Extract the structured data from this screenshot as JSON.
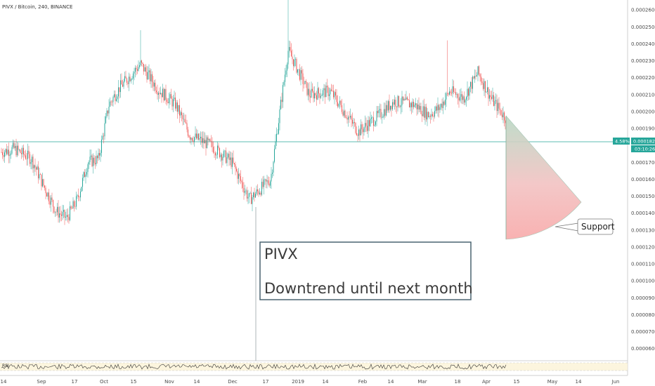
{
  "header": {
    "symbol": "PIVX / Bitcoin, 240, BINANCE"
  },
  "price_axis": {
    "ticks": [
      "0.0002600",
      "0.0002500",
      "0.0002400",
      "0.0002300",
      "0.0002200",
      "0.0002100",
      "0.0002000",
      "0.0001900",
      "0.0001700",
      "0.0001600",
      "0.0001500",
      "0.0001400",
      "0.0001300",
      "0.0001200",
      "0.0001100",
      "0.0001000",
      "0.0000900",
      "0.0000800",
      "0.0000700",
      "0.0000600"
    ],
    "current_price": "0.0001826",
    "change_pct": "4.58%",
    "countdown": "03:10:26"
  },
  "time_axis": {
    "ticks": [
      "14",
      "Sep",
      "17",
      "Oct",
      "15",
      "Nov",
      "14",
      "Dec",
      "17",
      "2019",
      "14",
      "Feb",
      "14",
      "Mar",
      "18",
      "Apr",
      "15",
      "May",
      "14",
      "Jun"
    ]
  },
  "annotations": {
    "note_title": "PIVX",
    "note_text": "Downtrend until next month",
    "callout": "Support"
  },
  "indicator": {
    "label": "RSI"
  },
  "colors": {
    "up": "#26a69a",
    "down": "#ef5350",
    "price_line": "#26a69a",
    "fan_top": "#b5d7c4",
    "fan_bottom": "#f5a0a0",
    "note_border": "#4a6470",
    "badge": "#26a69a"
  },
  "chart_data": {
    "type": "line",
    "title": "PIVX / Bitcoin, 240, BINANCE",
    "xlabel": "",
    "ylabel": "",
    "ylim": [
      5e-05,
      0.00027
    ],
    "x": [
      "Aug 14",
      "Aug 20",
      "Aug 27",
      "Sep 1",
      "Sep 8",
      "Sep 17",
      "Sep 24",
      "Oct 1",
      "Oct 8",
      "Oct 15",
      "Oct 22",
      "Nov 1",
      "Nov 7",
      "Nov 14",
      "Nov 21",
      "Dec 1",
      "Dec 8",
      "Dec 17",
      "Dec 24",
      "Jan 1",
      "Jan 7",
      "Jan 14",
      "Jan 21",
      "Feb 1",
      "Feb 7",
      "Feb 14",
      "Feb 21",
      "Mar 1",
      "Mar 8",
      "Mar 18",
      "Mar 24",
      "Apr 1",
      "Apr 5",
      "Apr 8"
    ],
    "series": [
      {
        "values": [
          0.000176,
          0.000178,
          0.000172,
          0.000158,
          0.000141,
          0.000137,
          0.000148,
          0.00017,
          0.000172,
          0.000204,
          0.000214,
          0.000228,
          0.000213,
          0.000204,
          0.000186,
          0.00018,
          0.00017,
          0.000148,
          0.00016,
          0.000236,
          0.000228,
          0.00021,
          0.000212,
          0.000188,
          0.000198,
          0.000206,
          0.000204,
          0.000198,
          0.000202,
          0.000212,
          0.000208,
          0.000223,
          0.000207,
          0.000196
        ]
      }
    ]
  }
}
